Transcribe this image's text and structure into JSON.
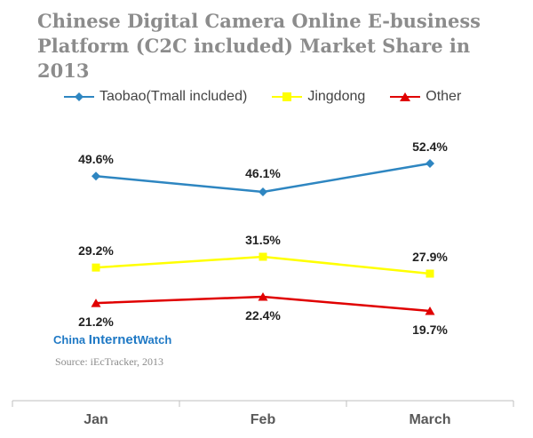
{
  "title_line1": "Chinese Digital Camera Online E-business",
  "title_line2": "Platform (C2C included) Market Share in 2013",
  "brand": {
    "part1": "China ",
    "part2": "Internet",
    "part3": "Watch"
  },
  "source": "Source: iEcTracker, 2013",
  "chart_data": {
    "type": "line",
    "title": "Chinese Digital Camera Online E-business Platform (C2C included) Market Share in 2013",
    "categories": [
      "Jan",
      "Feb",
      "March"
    ],
    "series": [
      {
        "name": "Taobao(Tmall included)",
        "values": [
          49.6,
          46.1,
          52.4
        ],
        "labels": [
          "49.6%",
          "46.1%",
          "52.4%"
        ],
        "color": "#2e86c1",
        "marker": "diamond"
      },
      {
        "name": "Jingdong",
        "values": [
          29.2,
          31.5,
          27.9
        ],
        "labels": [
          "29.2%",
          "31.5%",
          "27.9%"
        ],
        "color": "#ffff00",
        "marker": "square"
      },
      {
        "name": "Other",
        "values": [
          21.2,
          22.4,
          19.7
        ],
        "labels": [
          "21.2%",
          "22.4%",
          "19.7%"
        ],
        "color": "#e00000",
        "marker": "triangle"
      }
    ],
    "legend": "top",
    "grid": false
  }
}
